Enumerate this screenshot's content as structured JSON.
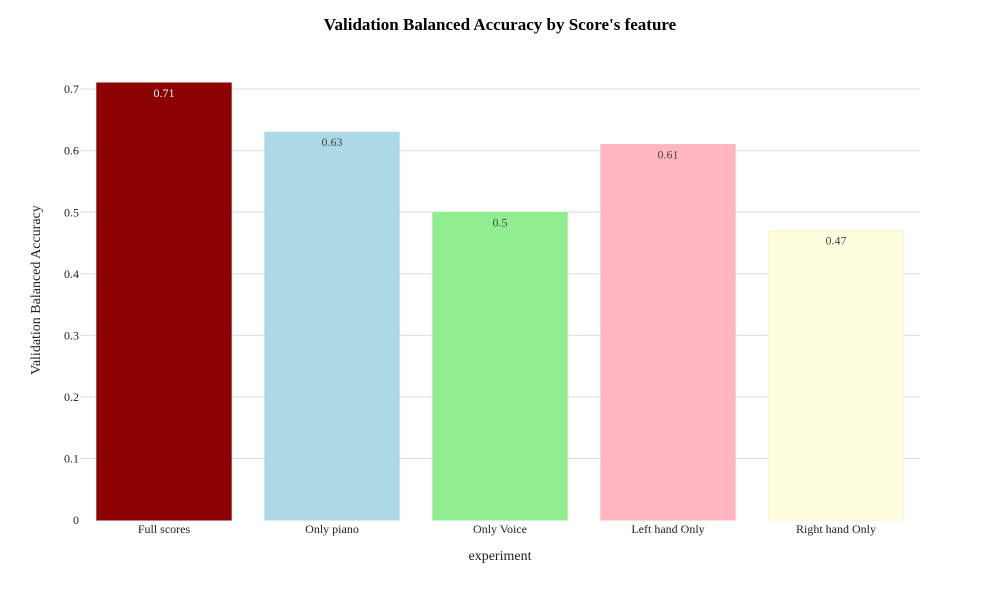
{
  "chart_data": {
    "type": "bar",
    "title": "Validation Balanced Accuracy by Score's feature",
    "xlabel": "experiment",
    "ylabel": "Validation Balanced Accuracy",
    "categories": [
      "Full scores",
      "Only piano",
      "Only Voice",
      "Left hand Only",
      "Right hand Only"
    ],
    "values": [
      0.71,
      0.63,
      0.5,
      0.61,
      0.47
    ],
    "data_labels": [
      "0.71",
      "0.63",
      "0.5",
      "0.61",
      "0.47"
    ],
    "bar_colors": [
      "#8b0000",
      "#add8e6",
      "#90ee90",
      "#ffb6c1",
      "#ffffe0"
    ],
    "label_colors": [
      "#ffffff",
      "#444444",
      "#444444",
      "#444444",
      "#444444"
    ],
    "ylim": [
      0,
      0.71
    ],
    "yticks": [
      0,
      0.1,
      0.2,
      0.3,
      0.4,
      0.5,
      0.6,
      0.7
    ],
    "ytick_labels": [
      "0",
      "0.1",
      "0.2",
      "0.3",
      "0.4",
      "0.5",
      "0.6",
      "0.7"
    ],
    "grid": true,
    "legend": "none"
  }
}
